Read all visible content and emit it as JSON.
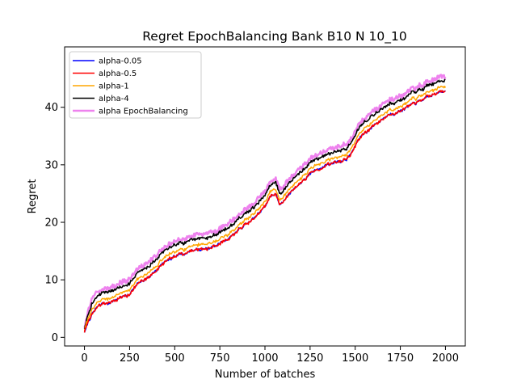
{
  "chart_data": {
    "type": "line",
    "title": "Regret EpochBalancing Bank B10 N 10_10",
    "xlabel": "Number of batches",
    "ylabel": "Regret",
    "xlim": [
      -110,
      2110
    ],
    "ylim": [
      -1.5,
      50.5
    ],
    "xticks": [
      0,
      250,
      500,
      750,
      1000,
      1250,
      1500,
      1750,
      2000
    ],
    "yticks": [
      0,
      10,
      20,
      30,
      40
    ],
    "legend_position": "top-left",
    "grid": false,
    "base_curve": {
      "x": [
        0,
        25,
        50,
        75,
        100,
        150,
        200,
        250,
        300,
        350,
        400,
        450,
        500,
        550,
        600,
        650,
        700,
        750,
        800,
        850,
        900,
        950,
        1000,
        1030,
        1060,
        1080,
        1100,
        1150,
        1200,
        1250,
        1300,
        1350,
        1400,
        1450,
        1480,
        1500,
        1520,
        1550,
        1600,
        1650,
        1700,
        1750,
        1800,
        1850,
        1900,
        1950,
        2000
      ],
      "y": [
        1.0,
        3.0,
        4.3,
        5.3,
        5.8,
        6.2,
        6.9,
        7.6,
        9.3,
        10.3,
        11.8,
        13.2,
        13.8,
        14.6,
        15.3,
        15.4,
        15.6,
        16.3,
        17.3,
        18.6,
        19.8,
        20.9,
        22.6,
        24.6,
        24.8,
        23.3,
        23.5,
        25.6,
        27.0,
        28.3,
        29.4,
        30.1,
        30.6,
        31.0,
        32.0,
        33.2,
        34.4,
        35.5,
        36.8,
        38.0,
        39.0,
        39.5,
        40.2,
        40.9,
        41.6,
        42.3,
        43.0
      ]
    },
    "series": [
      {
        "name": "alpha-0.05",
        "color": "#0000ff",
        "offset": 0.0,
        "noise": 0.18,
        "width": 1.5
      },
      {
        "name": "alpha-0.5",
        "color": "#ff0000",
        "offset": 0.0,
        "noise": 0.2,
        "width": 1.6
      },
      {
        "name": "alpha-1",
        "color": "#ffa500",
        "offset": 0.8,
        "noise": 0.2,
        "width": 1.5
      },
      {
        "name": "alpha-4",
        "color": "#000000",
        "offset": 1.9,
        "noise": 0.22,
        "width": 1.6
      },
      {
        "name": "alpha EpochBalancing",
        "color": "#ee82ee",
        "offset": 2.6,
        "noise": 0.35,
        "width": 2.5
      }
    ]
  }
}
